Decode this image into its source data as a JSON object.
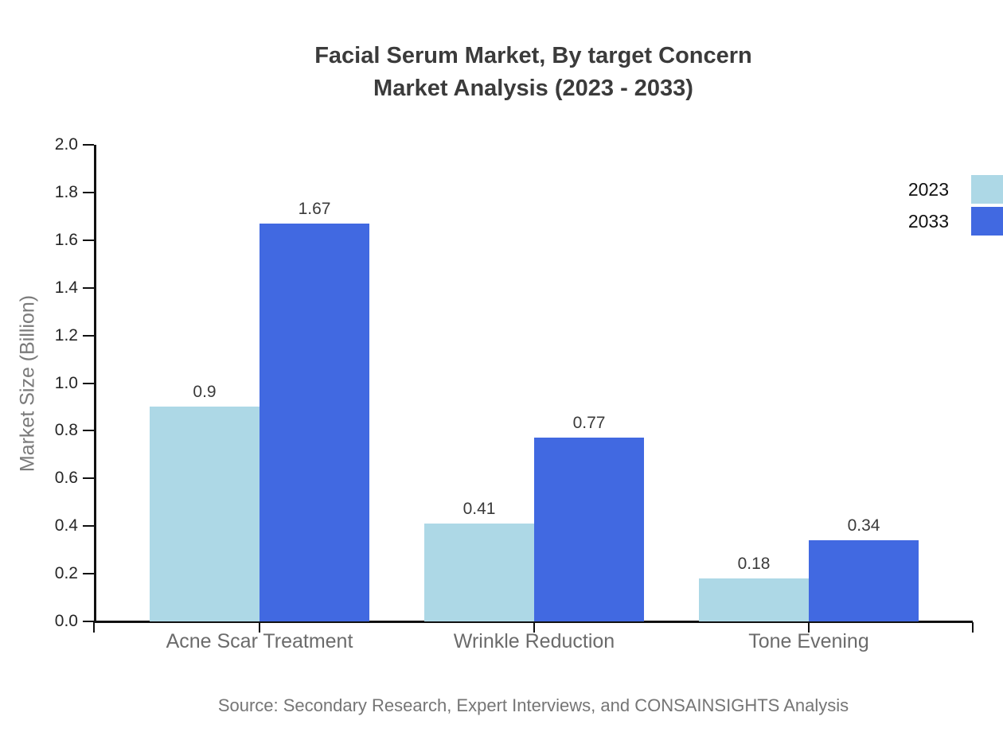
{
  "title": {
    "line1": "Facial Serum Market, By target Concern",
    "line2": "Market Analysis (2023 - 2033)"
  },
  "y_axis": {
    "label": "Market Size (Billion)",
    "ticks": [
      "0.0",
      "0.2",
      "0.4",
      "0.6",
      "0.8",
      "1.0",
      "1.2",
      "1.4",
      "1.6",
      "1.8",
      "2.0"
    ],
    "max": 2.0
  },
  "chart_data": {
    "type": "bar",
    "title": "Facial Serum Market, By target Concern Market Analysis (2023 - 2033)",
    "categories": [
      "Acne Scar Treatment",
      "Wrinkle Reduction",
      "Tone Evening"
    ],
    "series": [
      {
        "name": "2023",
        "color": "#ADD8E6",
        "values": [
          0.9,
          0.41,
          0.18
        ],
        "labels": [
          "0.9",
          "0.41",
          "0.18"
        ]
      },
      {
        "name": "2033",
        "color": "#4169E1",
        "values": [
          1.67,
          0.77,
          0.34
        ],
        "labels": [
          "1.67",
          "0.77",
          "0.34"
        ]
      }
    ],
    "xlabel": "",
    "ylabel": "Market Size (Billion)",
    "ylim": [
      0.0,
      2.0
    ],
    "grid": false,
    "legend_position": "upper-right-outside"
  },
  "legend": {
    "items": [
      {
        "label": "2023",
        "color": "#ADD8E6"
      },
      {
        "label": "2033",
        "color": "#4169E1"
      }
    ]
  },
  "source": "Source: Secondary Research, Expert Interviews, and CONSAINSIGHTS Analysis"
}
